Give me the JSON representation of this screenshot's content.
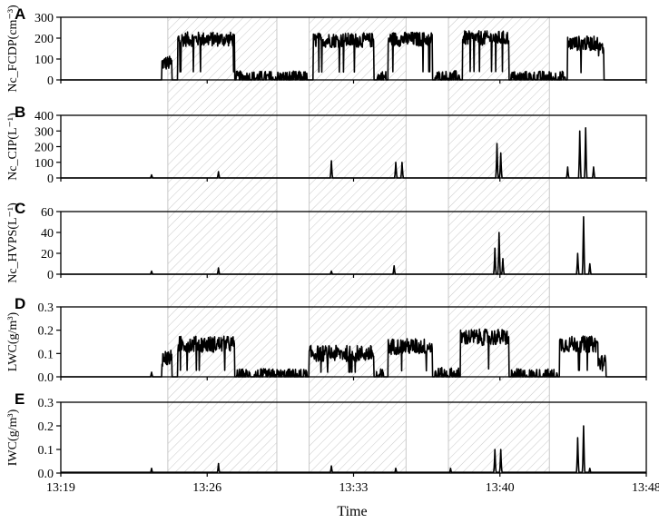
{
  "chart_data": {
    "type": "line",
    "xlabel": "Time",
    "x_ticks": [
      "13:19",
      "13:26",
      "13:33",
      "13:40",
      "13:48"
    ],
    "x_range_minutes": [
      0,
      29
    ],
    "shaded_intervals_minutes": [
      [
        5.3,
        10.7
      ],
      [
        12.3,
        17.1
      ],
      [
        19.2,
        24.2
      ]
    ],
    "shade_style": "hatched",
    "panels": [
      {
        "letter": "A",
        "ylabel": "Nc_FCDP(cm⁻³)",
        "ylim": [
          0,
          300
        ],
        "yticks": [
          "0",
          "100",
          "200",
          "300"
        ],
        "series": {
          "baseline": 0,
          "noise": 35,
          "spikes": [
            [
              7.8,
              5
            ],
            [
              5.2,
              40
            ]
          ],
          "segments": [
            [
              5.0,
              5.5,
              80
            ],
            [
              5.8,
              8.6,
              195
            ],
            [
              8.7,
              12.2,
              8
            ],
            [
              12.5,
              15.5,
              190
            ],
            [
              15.6,
              16.1,
              10
            ],
            [
              16.2,
              18.4,
              195
            ],
            [
              18.5,
              19.8,
              10
            ],
            [
              19.9,
              22.2,
              200
            ],
            [
              22.3,
              25.0,
              8
            ],
            [
              25.1,
              26.6,
              175
            ],
            [
              26.6,
              26.9,
              150
            ]
          ]
        }
      },
      {
        "letter": "B",
        "ylabel": "Nc_CIP(L⁻¹)",
        "ylim": [
          0,
          400
        ],
        "yticks": [
          "0",
          "100",
          "200",
          "300",
          "400"
        ],
        "series": {
          "baseline": 0,
          "spikes": [
            [
              4.5,
              20
            ],
            [
              7.8,
              40
            ],
            [
              13.4,
              110
            ],
            [
              16.6,
              100
            ],
            [
              16.9,
              100
            ],
            [
              21.6,
              220
            ],
            [
              21.8,
              160
            ],
            [
              25.1,
              70
            ],
            [
              25.7,
              300
            ],
            [
              26.0,
              320
            ],
            [
              26.4,
              70
            ]
          ]
        }
      },
      {
        "letter": "C",
        "ylabel": "Nc_HVPS(L⁻¹)",
        "ylim": [
          0,
          60
        ],
        "yticks": [
          "0",
          "20",
          "40",
          "60"
        ],
        "series": {
          "baseline": 0,
          "spikes": [
            [
              4.5,
              3
            ],
            [
              7.8,
              6
            ],
            [
              13.4,
              3
            ],
            [
              16.5,
              8
            ],
            [
              21.5,
              25
            ],
            [
              21.7,
              40
            ],
            [
              21.9,
              15
            ],
            [
              25.6,
              20
            ],
            [
              25.9,
              55
            ],
            [
              26.2,
              10
            ]
          ]
        }
      },
      {
        "letter": "D",
        "ylabel": "LWC(g/m³)",
        "ylim": [
          0,
          0.3
        ],
        "yticks": [
          "0.0",
          "0.1",
          "0.2",
          "0.3"
        ],
        "series": {
          "baseline": 0,
          "noise": 0.035,
          "spikes": [
            [
              4.5,
              0.02
            ]
          ],
          "segments": [
            [
              5.0,
              5.5,
              0.08
            ],
            [
              5.8,
              8.6,
              0.14
            ],
            [
              8.7,
              12.2,
              0.0
            ],
            [
              12.3,
              15.5,
              0.1
            ],
            [
              15.6,
              16.1,
              0.0
            ],
            [
              16.2,
              18.4,
              0.13
            ],
            [
              18.5,
              19.7,
              0.005
            ],
            [
              19.8,
              22.2,
              0.17
            ],
            [
              22.3,
              24.6,
              0.0
            ],
            [
              24.7,
              26.6,
              0.14
            ],
            [
              26.6,
              27.0,
              0.06
            ]
          ]
        }
      },
      {
        "letter": "E",
        "ylabel": "IWC(g/m³)",
        "ylim": [
          0,
          0.3
        ],
        "yticks": [
          "0.0",
          "0.1",
          "0.2",
          "0.3"
        ],
        "series": {
          "baseline": 0.003,
          "spikes": [
            [
              4.5,
              0.02
            ],
            [
              7.8,
              0.04
            ],
            [
              13.4,
              0.03
            ],
            [
              16.6,
              0.02
            ],
            [
              19.3,
              0.02
            ],
            [
              21.5,
              0.1
            ],
            [
              21.8,
              0.1
            ],
            [
              25.6,
              0.15
            ],
            [
              25.9,
              0.2
            ],
            [
              26.2,
              0.02
            ]
          ]
        }
      }
    ]
  }
}
